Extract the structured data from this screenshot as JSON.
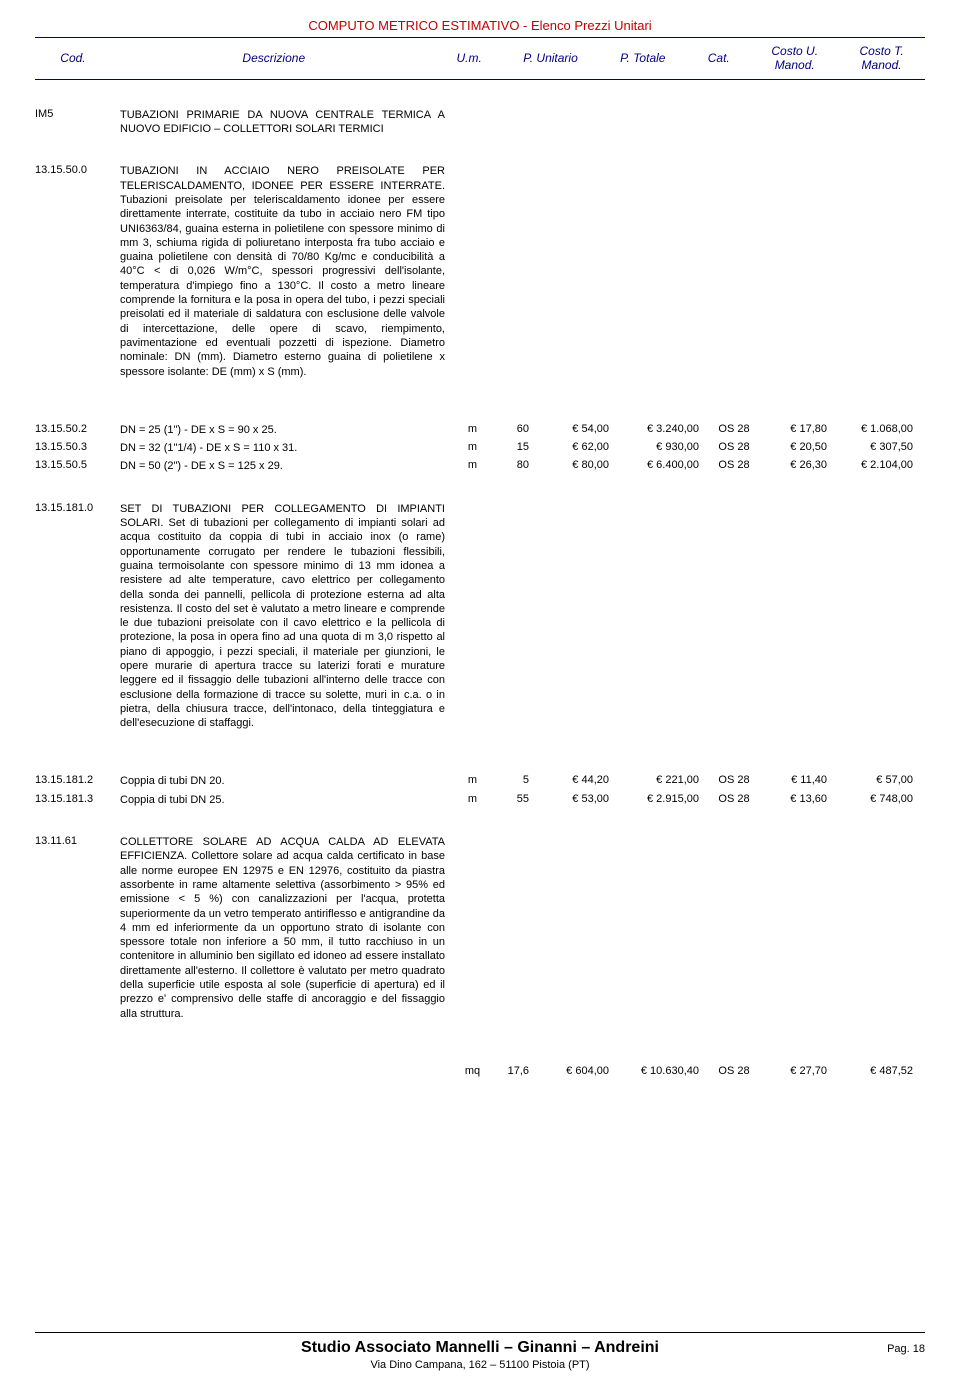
{
  "doc_title": "COMPUTO METRICO ESTIMATIVO - Elenco Prezzi Unitari",
  "headers": {
    "cod": "Cod.",
    "desc": "Descrizione",
    "um": "U.m.",
    "pu": "P. Unitario",
    "pt": "P. Totale",
    "cat": "Cat.",
    "cum_l1": "Costo U.",
    "cum_l2": "Manod.",
    "ctm_l1": "Costo T.",
    "ctm_l2": "Manod."
  },
  "items": [
    {
      "code": "IM5",
      "desc": "TUBAZIONI PRIMARIE DA NUOVA CENTRALE TERMICA A NUOVO EDIFICIO – COLLETTORI SOLARI TERMICI",
      "type": "heading"
    },
    {
      "code": "13.15.50.0",
      "desc": "TUBAZIONI IN ACCIAIO NERO PREISOLATE PER TELERISCALDAMENTO, IDONEE PER ESSERE INTERRATE. Tubazioni preisolate per teleriscaldamento idonee per essere direttamente interrate, costituite da tubo in acciaio nero FM tipo UNI6363/84, guaina esterna in polietilene con spessore minimo di mm 3, schiuma rigida di poliuretano interposta fra tubo acciaio e guaina polietilene con densità di 70/80 Kg/mc e conducibilità a 40°C < di 0,026 W/m°C, spessori progressivi dell'isolante, temperatura d'impiego fino a 130°C. Il costo a metro lineare comprende la fornitura e la posa in opera del tubo, i pezzi speciali preisolati ed il materiale di saldatura con esclusione delle valvole di intercettazione, delle opere di scavo, riempimento, pavimentazione ed eventuali pozzetti di ispezione. Diametro nominale: DN (mm). Diametro esterno guaina di polietilene x spessore isolante: DE (mm) x S (mm).",
      "type": "text"
    },
    {
      "code": "13.15.50.2",
      "desc": "DN = 25 (1\") - DE x S = 90 x 25.",
      "um": "m",
      "qty": "60",
      "pu": "€ 54,00",
      "pt": "€ 3.240,00",
      "cat": "OS 28",
      "cum": "€ 17,80",
      "ctm": "€ 1.068,00",
      "type": "data"
    },
    {
      "code": "13.15.50.3",
      "desc": "DN = 32 (1\"1/4) - DE x S = 110 x 31.",
      "um": "m",
      "qty": "15",
      "pu": "€ 62,00",
      "pt": "€ 930,00",
      "cat": "OS 28",
      "cum": "€ 20,50",
      "ctm": "€ 307,50",
      "type": "data"
    },
    {
      "code": "13.15.50.5",
      "desc": "DN = 50 (2\") - DE x S = 125 x 29.",
      "um": "m",
      "qty": "80",
      "pu": "€ 80,00",
      "pt": "€ 6.400,00",
      "cat": "OS 28",
      "cum": "€ 26,30",
      "ctm": "€ 2.104,00",
      "type": "data"
    },
    {
      "code": "13.15.181.0",
      "desc": "SET DI TUBAZIONI PER COLLEGAMENTO DI IMPIANTI SOLARI. Set di tubazioni per collegamento di impianti solari ad acqua costituito da coppia di tubi in acciaio inox (o rame) opportunamente corrugato per rendere le tubazioni flessibili, guaina termoisolante con spessore minimo di 13 mm idonea a resistere ad alte temperature, cavo elettrico per collegamento della sonda dei pannelli, pellicola di protezione esterna ad alta resistenza. Il costo del set è valutato a metro lineare e comprende le due tubazioni preisolate con il cavo elettrico e la pellicola di protezione, la posa in opera fino ad una quota di m 3,0 rispetto al piano di appoggio, i pezzi speciali, il materiale per giunzioni, le opere murarie di apertura tracce su laterizi forati e murature leggere ed il fissaggio delle tubazioni all'interno delle tracce con esclusione della formazione di tracce su solette, muri in c.a. o in pietra, della chiusura tracce, dell'intonaco, della tinteggiatura e dell'esecuzione di staffaggi.",
      "type": "text"
    },
    {
      "code": "13.15.181.2",
      "desc": "Coppia di tubi DN 20.",
      "um": "m",
      "qty": "5",
      "pu": "€ 44,20",
      "pt": "€ 221,00",
      "cat": "OS 28",
      "cum": "€ 11,40",
      "ctm": "€ 57,00",
      "type": "data"
    },
    {
      "code": "13.15.181.3",
      "desc": "Coppia di tubi DN 25.",
      "um": "m",
      "qty": "55",
      "pu": "€ 53,00",
      "pt": "€ 2.915,00",
      "cat": "OS 28",
      "cum": "€ 13,60",
      "ctm": "€ 748,00",
      "type": "data"
    },
    {
      "code": "13.11.61",
      "desc": "COLLETTORE SOLARE AD ACQUA CALDA AD ELEVATA EFFICIENZA. Collettore solare ad acqua calda certificato in base alle norme europee EN 12975 e EN 12976, costituito da piastra assorbente in rame altamente selettiva (assorbimento > 95% ed emissione < 5 %) con canalizzazioni per l'acqua, protetta superiormente da un vetro temperato antiriflesso e antigrandine da 4 mm ed inferiormente da un opportuno strato di isolante con spessore totale non inferiore a 50 mm, il tutto racchiuso in un contenitore in alluminio ben sigillato ed idoneo ad essere installato direttamente all'esterno. Il collettore è valutato per metro quadrato della superficie utile esposta al sole (superficie di apertura) ed il prezzo e' comprensivo delle staffe di ancoraggio e del fissaggio alla struttura.",
      "type": "text"
    },
    {
      "code": "",
      "desc": "",
      "um": "mq",
      "qty": "17,6",
      "pu": "€ 604,00",
      "pt": "€ 10.630,40",
      "cat": "OS 28",
      "cum": "€ 27,70",
      "ctm": "€ 487,52",
      "type": "data"
    }
  ],
  "footer": {
    "main": "Studio Associato Mannelli – Ginanni – Andreini",
    "addr": "Via Dino Campana, 162 – 51100 Pistoia (PT)",
    "page": "Pag. 18"
  }
}
